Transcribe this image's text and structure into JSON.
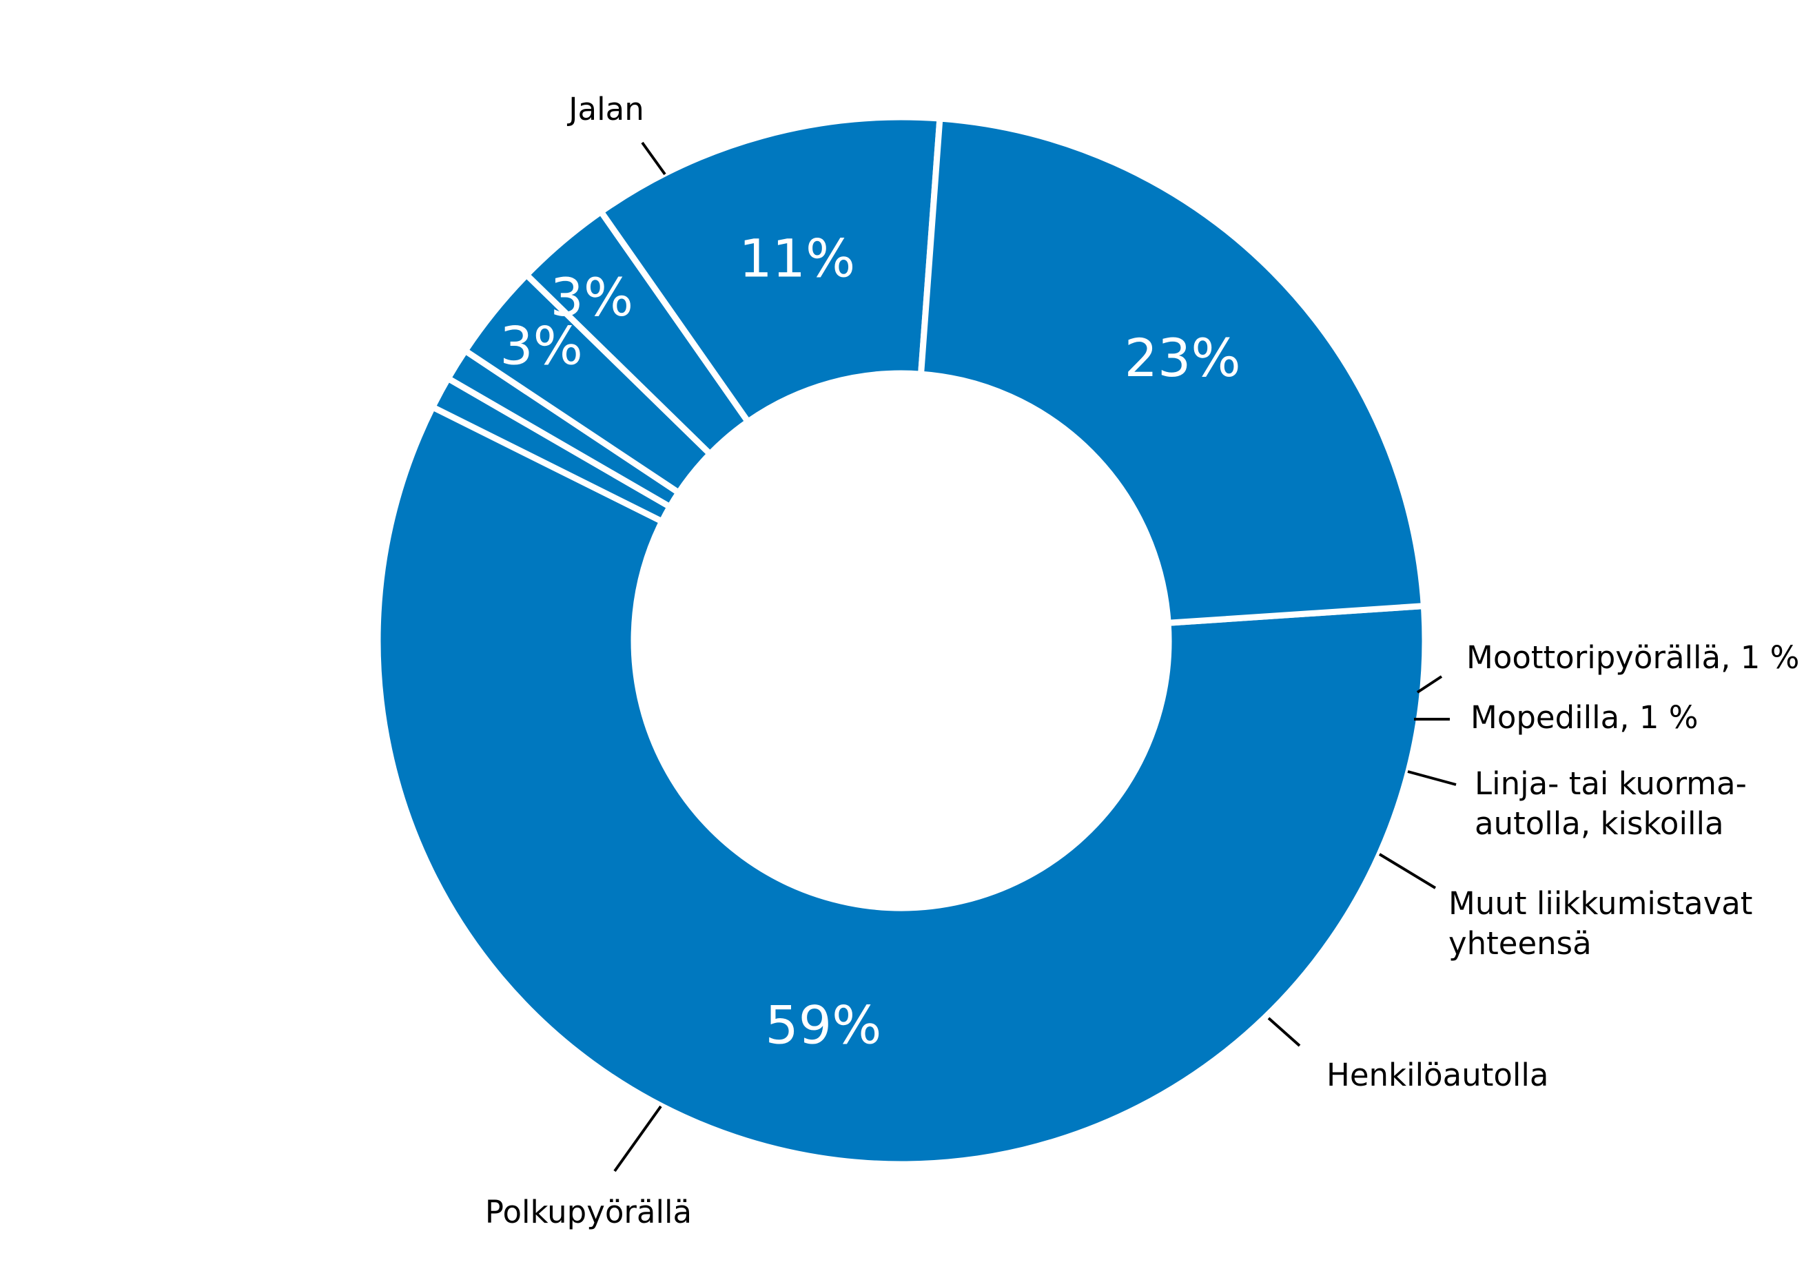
{
  "chart_data": {
    "type": "pie",
    "variant": "donut",
    "title": "",
    "color": "#0078BF",
    "separator_color": "#ffffff",
    "slices": [
      {
        "name": "Jalan",
        "value": 59,
        "value_label": "59%",
        "category_label": [
          "Jalan"
        ]
      },
      {
        "name": "Moottoripyörällä",
        "value": 1,
        "value_label": "",
        "category_label": [
          "Moottoripyörällä, 1 %"
        ]
      },
      {
        "name": "Mopedilla",
        "value": 1,
        "value_label": "",
        "category_label": [
          "Mopedilla, 1 %"
        ]
      },
      {
        "name": "Linja- tai kuorma-autolla, kiskoilla",
        "value": 3,
        "value_label": "3%",
        "category_label": [
          "Linja- tai kuorma-",
          "autolla, kiskoilla"
        ]
      },
      {
        "name": "Muut liikkumistavat yhteensä",
        "value": 3,
        "value_label": "3%",
        "category_label": [
          "Muut liikkumistavat",
          "yhteensä"
        ]
      },
      {
        "name": "Henkilöautolla",
        "value": 11,
        "value_label": "11%",
        "category_label": [
          "Henkilöautolla"
        ]
      },
      {
        "name": "Polkupyörällä",
        "value": 23,
        "value_label": "23%",
        "category_label": [
          "Polkupyörällä"
        ]
      }
    ]
  }
}
